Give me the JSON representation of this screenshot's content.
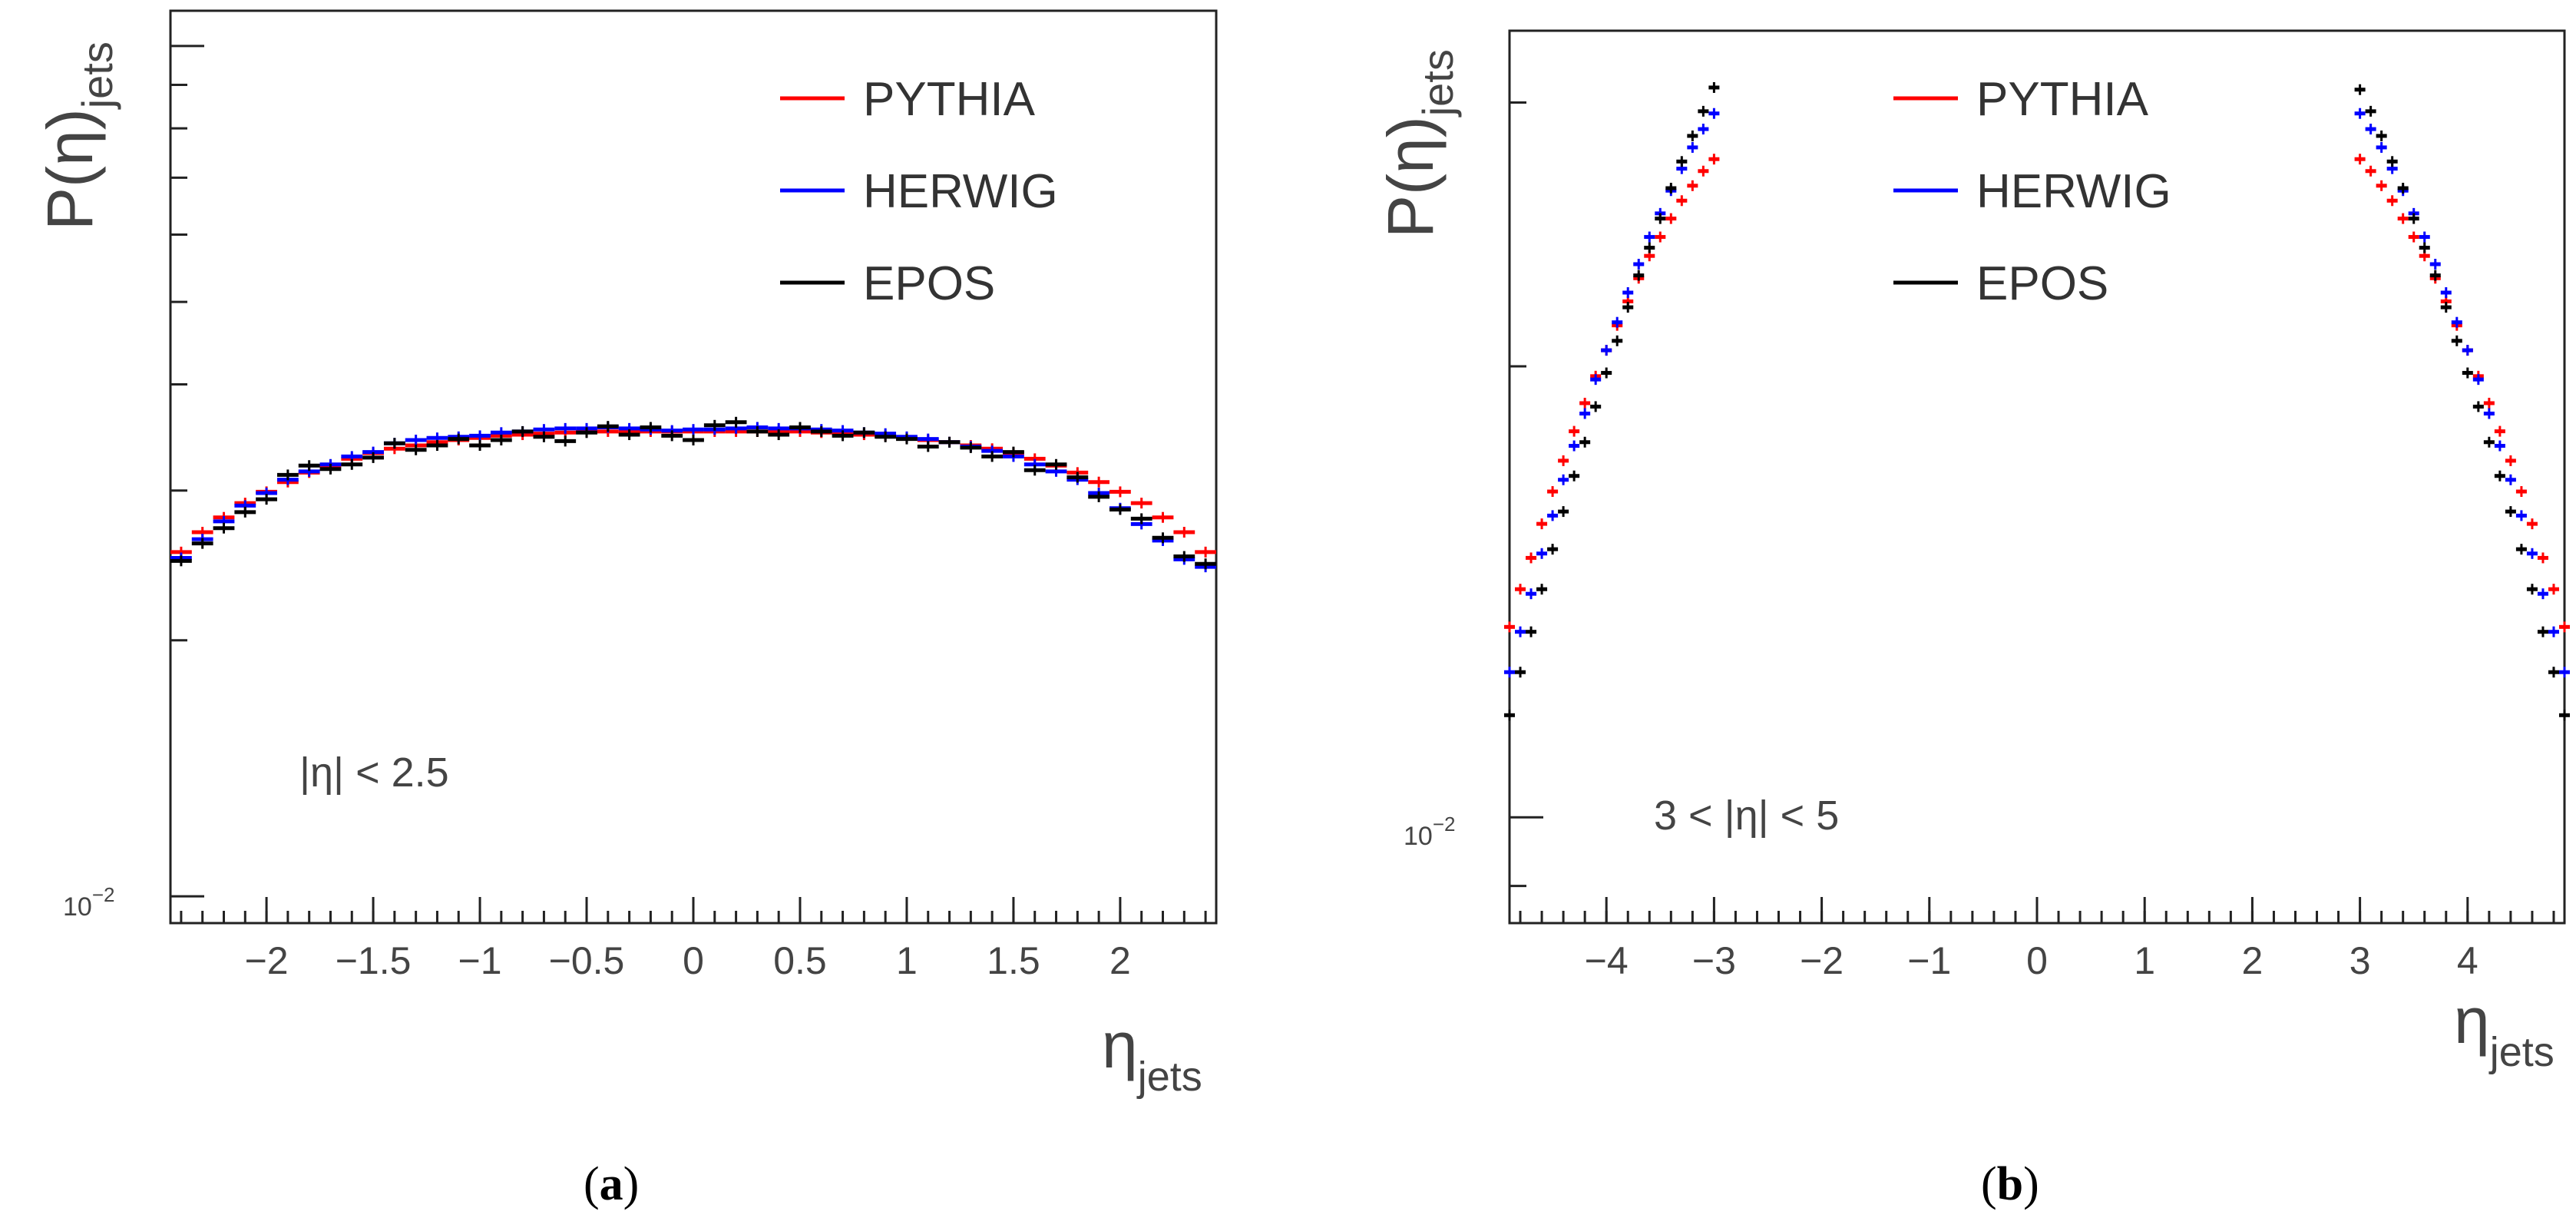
{
  "chart_data": [
    {
      "id": "a",
      "type": "scatter",
      "caption": "a",
      "ylabel": "P(η)",
      "ylabel_sub": "jets",
      "xlabel": "η",
      "xlabel_sub": "jets",
      "yscale": "log",
      "ylim": [
        0.0093,
        0.11
      ],
      "xlim": [
        -2.45,
        2.45
      ],
      "xticks": [
        -2,
        -1.5,
        -1,
        -0.5,
        0,
        0.5,
        1,
        1.5,
        2
      ],
      "xtick_labels": [
        "−2",
        "−1.5",
        "−1",
        "−0.5",
        "0",
        "0.5",
        "1",
        "1.5",
        "2"
      ],
      "ytick_label": "10",
      "ytick_label_exp": "−2",
      "annotation": "|η| < 2.5",
      "legend": [
        "PYTHIA",
        "HERWIG",
        "EPOS"
      ],
      "colors": [
        "#ff0000",
        "#0000ff",
        "#000000"
      ],
      "bin_width": 0.1,
      "x": [
        -2.4,
        -2.3,
        -2.2,
        -2.1,
        -2.0,
        -1.9,
        -1.8,
        -1.7,
        -1.6,
        -1.5,
        -1.4,
        -1.3,
        -1.2,
        -1.1,
        -1.0,
        -0.9,
        -0.8,
        -0.7,
        -0.6,
        -0.5,
        -0.4,
        -0.3,
        -0.2,
        -0.1,
        0.0,
        0.1,
        0.2,
        0.3,
        0.4,
        0.5,
        0.6,
        0.7,
        0.8,
        0.9,
        1.0,
        1.1,
        1.2,
        1.3,
        1.4,
        1.5,
        1.6,
        1.7,
        1.8,
        1.9,
        2.0,
        2.1,
        2.2,
        2.3,
        2.4
      ],
      "series": [
        {
          "name": "PYTHIA",
          "values": [
            0.0254,
            0.0268,
            0.0279,
            0.029,
            0.0299,
            0.0307,
            0.0315,
            0.0321,
            0.0327,
            0.0332,
            0.0336,
            0.0339,
            0.0342,
            0.0344,
            0.0346,
            0.0348,
            0.0349,
            0.035,
            0.0351,
            0.0352,
            0.0352,
            0.0352,
            0.0352,
            0.0352,
            0.0352,
            0.0352,
            0.0352,
            0.0352,
            0.0352,
            0.0352,
            0.0351,
            0.035,
            0.0349,
            0.0348,
            0.0346,
            0.0344,
            0.0342,
            0.0339,
            0.0336,
            0.0332,
            0.0327,
            0.0321,
            0.0315,
            0.0307,
            0.0299,
            0.029,
            0.0279,
            0.0268,
            0.0254
          ]
        },
        {
          "name": "HERWIG",
          "values": [
            0.025,
            0.0263,
            0.0276,
            0.0288,
            0.0298,
            0.0309,
            0.0316,
            0.0322,
            0.0329,
            0.0333,
            0.0341,
            0.0344,
            0.0346,
            0.0347,
            0.0348,
            0.0351,
            0.0352,
            0.0354,
            0.0355,
            0.0355,
            0.0356,
            0.0355,
            0.0354,
            0.0353,
            0.0354,
            0.0354,
            0.0355,
            0.0356,
            0.0355,
            0.0355,
            0.0354,
            0.0353,
            0.0351,
            0.035,
            0.0347,
            0.0345,
            0.0342,
            0.0338,
            0.0334,
            0.0329,
            0.0322,
            0.0316,
            0.0309,
            0.0298,
            0.0286,
            0.0274,
            0.0262,
            0.0249,
            0.0244
          ]
        },
        {
          "name": "EPOS",
          "values": [
            0.0248,
            0.026,
            0.0271,
            0.0283,
            0.0293,
            0.0313,
            0.0321,
            0.0318,
            0.0322,
            0.0328,
            0.0341,
            0.0335,
            0.0339,
            0.0345,
            0.0339,
            0.0344,
            0.0352,
            0.0347,
            0.0343,
            0.0351,
            0.0357,
            0.0349,
            0.0356,
            0.0348,
            0.0344,
            0.0358,
            0.0361,
            0.0352,
            0.0349,
            0.0356,
            0.0352,
            0.0348,
            0.0351,
            0.0347,
            0.0345,
            0.0338,
            0.0342,
            0.0337,
            0.0329,
            0.0333,
            0.0317,
            0.0322,
            0.0311,
            0.0295,
            0.0285,
            0.0278,
            0.0264,
            0.0251,
            0.0246
          ]
        }
      ]
    },
    {
      "id": "b",
      "type": "scatter",
      "caption": "b",
      "ylabel": "P(η)",
      "ylabel_sub": "jets",
      "xlabel": "η",
      "xlabel_sub": "jets",
      "yscale": "log",
      "ylim": [
        0.0085,
        0.0335
      ],
      "xlim": [
        -4.9,
        4.9
      ],
      "xticks": [
        -4,
        -3,
        -2,
        -1,
        0,
        1,
        2,
        3,
        4
      ],
      "xtick_labels": [
        "−4",
        "−3",
        "−2",
        "−1",
        "0",
        "1",
        "2",
        "3",
        "4"
      ],
      "ytick_label": "10",
      "ytick_label_exp": "−2",
      "annotation": "3 < |η| < 5",
      "legend": [
        "PYTHIA",
        "HERWIG",
        "EPOS"
      ],
      "colors": [
        "#ff0000",
        "#0000ff",
        "#000000"
      ],
      "bin_width": 0.1,
      "x": [
        -4.9,
        -4.8,
        -4.7,
        -4.6,
        -4.5,
        -4.4,
        -4.3,
        -4.2,
        -4.1,
        -4.0,
        -3.9,
        -3.8,
        -3.7,
        -3.6,
        -3.5,
        -3.4,
        -3.3,
        -3.2,
        -3.1,
        -3.0,
        3.0,
        3.1,
        3.2,
        3.3,
        3.4,
        3.5,
        3.6,
        3.7,
        3.8,
        3.9,
        4.0,
        4.1,
        4.2,
        4.3,
        4.4,
        4.5,
        4.6,
        4.7,
        4.8,
        4.9
      ],
      "series": [
        {
          "name": "PYTHIA",
          "values": [
            0.0134,
            0.0142,
            0.0149,
            0.0157,
            0.0165,
            0.0173,
            0.0181,
            0.0189,
            0.0197,
            0.0205,
            0.0213,
            0.0221,
            0.0229,
            0.0237,
            0.0244,
            0.0251,
            0.0258,
            0.0264,
            0.027,
            0.0275,
            0.0275,
            0.027,
            0.0264,
            0.0258,
            0.0251,
            0.0244,
            0.0237,
            0.0229,
            0.0221,
            0.0213,
            0.0205,
            0.0197,
            0.0189,
            0.0181,
            0.0173,
            0.0165,
            0.0157,
            0.0149,
            0.0142,
            0.0134
          ]
        },
        {
          "name": "HERWIG",
          "values": [
            0.0125,
            0.0133,
            0.0141,
            0.015,
            0.0159,
            0.0168,
            0.0177,
            0.0186,
            0.0196,
            0.0205,
            0.0214,
            0.0224,
            0.0234,
            0.0244,
            0.0253,
            0.0262,
            0.0271,
            0.028,
            0.0288,
            0.0295,
            0.0295,
            0.0288,
            0.028,
            0.0271,
            0.0262,
            0.0253,
            0.0244,
            0.0234,
            0.0224,
            0.0214,
            0.0205,
            0.0196,
            0.0186,
            0.0177,
            0.0168,
            0.0159,
            0.015,
            0.0141,
            0.0133,
            0.0125
          ]
        },
        {
          "name": "EPOS",
          "values": [
            0.0117,
            0.0125,
            0.0133,
            0.0142,
            0.0151,
            0.016,
            0.0169,
            0.0178,
            0.0188,
            0.0198,
            0.0208,
            0.0219,
            0.023,
            0.024,
            0.0251,
            0.0263,
            0.0274,
            0.0285,
            0.0296,
            0.0307,
            0.0306,
            0.0296,
            0.0285,
            0.0274,
            0.0263,
            0.0251,
            0.024,
            0.023,
            0.0219,
            0.0208,
            0.0198,
            0.0188,
            0.0178,
            0.0169,
            0.016,
            0.0151,
            0.0142,
            0.0133,
            0.0125,
            0.0117
          ]
        }
      ]
    }
  ]
}
